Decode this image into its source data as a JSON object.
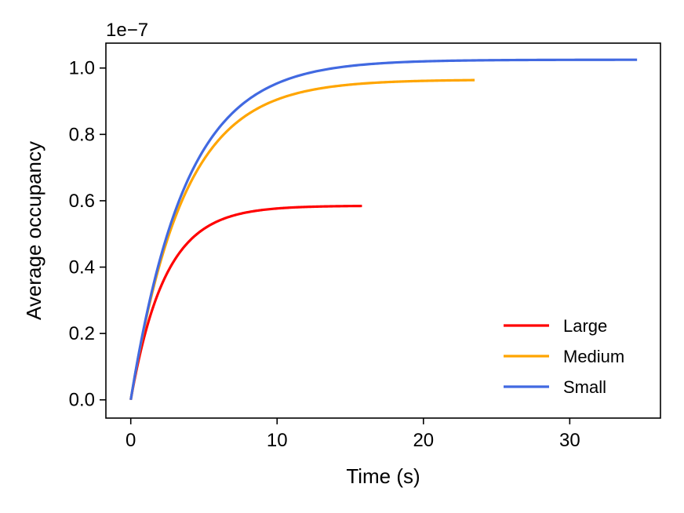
{
  "chart_data": {
    "type": "line",
    "title": "",
    "xlabel": "Time (s)",
    "ylabel": "Average occupancy",
    "y_offset_label": "1e−7",
    "xlim": [
      -1.7,
      36.2
    ],
    "ylim": [
      -0.055,
      1.075
    ],
    "xticks": [
      0,
      10,
      20,
      30
    ],
    "xtick_labels": [
      "0",
      "10",
      "20",
      "30"
    ],
    "yticks": [
      0.0,
      0.2,
      0.4,
      0.6,
      0.8,
      1.0
    ],
    "ytick_labels": [
      "0.0",
      "0.2",
      "0.4",
      "0.6",
      "0.8",
      "1.0"
    ],
    "grid": false,
    "legend_position": "lower-right",
    "series": [
      {
        "name": "Large",
        "color": "#ff0000",
        "x_end": 15.8,
        "plateau": 0.585,
        "time_constant": 2.35
      },
      {
        "name": "Medium",
        "color": "#ffa500",
        "x_end": 23.5,
        "plateau": 0.965,
        "time_constant": 3.6
      },
      {
        "name": "Small",
        "color": "#4169e1",
        "x_end": 34.6,
        "plateau": 1.025,
        "time_constant": 3.75
      }
    ]
  }
}
